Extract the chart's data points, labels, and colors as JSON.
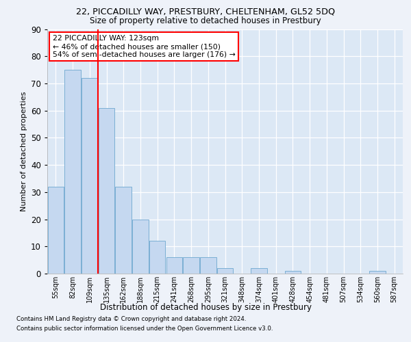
{
  "title1": "22, PICCADILLY WAY, PRESTBURY, CHELTENHAM, GL52 5DQ",
  "title2": "Size of property relative to detached houses in Prestbury",
  "xlabel": "Distribution of detached houses by size in Prestbury",
  "ylabel": "Number of detached properties",
  "categories": [
    "55sqm",
    "82sqm",
    "109sqm",
    "135sqm",
    "162sqm",
    "188sqm",
    "215sqm",
    "241sqm",
    "268sqm",
    "295sqm",
    "321sqm",
    "348sqm",
    "374sqm",
    "401sqm",
    "428sqm",
    "454sqm",
    "481sqm",
    "507sqm",
    "534sqm",
    "560sqm",
    "587sqm"
  ],
  "values": [
    32,
    75,
    72,
    61,
    32,
    20,
    12,
    6,
    6,
    6,
    2,
    0,
    2,
    0,
    1,
    0,
    0,
    0,
    0,
    1,
    0
  ],
  "bar_color": "#c5d8f0",
  "bar_edge_color": "#7bafd4",
  "redline_x": 2.5,
  "annotation_text": "22 PICCADILLY WAY: 123sqm\n← 46% of detached houses are smaller (150)\n54% of semi-detached houses are larger (176) →",
  "annotation_box_color": "white",
  "annotation_box_edge_color": "red",
  "redline_color": "red",
  "ylim": [
    0,
    90
  ],
  "yticks": [
    0,
    10,
    20,
    30,
    40,
    50,
    60,
    70,
    80,
    90
  ],
  "footer1": "Contains HM Land Registry data © Crown copyright and database right 2024.",
  "footer2": "Contains public sector information licensed under the Open Government Licence v3.0.",
  "bg_color": "#eef2f9",
  "plot_bg_color": "#dce8f5"
}
